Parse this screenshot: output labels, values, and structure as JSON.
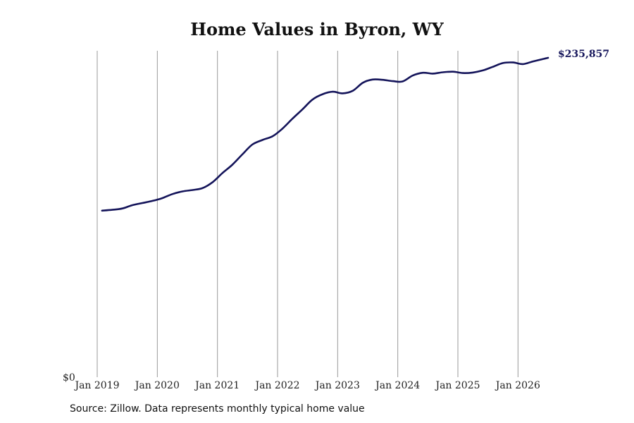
{
  "chart_data": {
    "type": "line",
    "title": "Home Values in Byron, WY",
    "source": "Source: Zillow. Data represents monthly typical home value",
    "y_min_label": "$0",
    "end_label": "$235,857",
    "line_color": "#14145a",
    "grid_color": "#999999",
    "ylim": [
      0,
      235857
    ],
    "xlim": [
      2019.0,
      2026.5
    ],
    "x_ticks": [
      {
        "x": 2019,
        "label": "Jan 2019"
      },
      {
        "x": 2020,
        "label": "Jan 2020"
      },
      {
        "x": 2021,
        "label": "Jan 2021"
      },
      {
        "x": 2022,
        "label": "Jan 2022"
      },
      {
        "x": 2023,
        "label": "Jan 2023"
      },
      {
        "x": 2024,
        "label": "Jan 2024"
      },
      {
        "x": 2025,
        "label": "Jan 2025"
      },
      {
        "x": 2026,
        "label": "Jan 2026"
      }
    ],
    "series": [
      {
        "points": [
          [
            2019.08,
            123000
          ],
          [
            2019.25,
            123600
          ],
          [
            2019.42,
            124600
          ],
          [
            2019.58,
            127000
          ],
          [
            2019.75,
            128600
          ],
          [
            2019.92,
            130200
          ],
          [
            2020.08,
            132200
          ],
          [
            2020.25,
            135200
          ],
          [
            2020.42,
            137200
          ],
          [
            2020.58,
            138200
          ],
          [
            2020.75,
            139600
          ],
          [
            2020.92,
            144000
          ],
          [
            2021.08,
            150600
          ],
          [
            2021.25,
            157000
          ],
          [
            2021.42,
            164800
          ],
          [
            2021.58,
            171800
          ],
          [
            2021.75,
            175200
          ],
          [
            2021.92,
            178000
          ],
          [
            2022.08,
            183500
          ],
          [
            2022.25,
            191000
          ],
          [
            2022.42,
            198000
          ],
          [
            2022.58,
            205000
          ],
          [
            2022.75,
            209000
          ],
          [
            2022.92,
            210800
          ],
          [
            2023.08,
            209600
          ],
          [
            2023.25,
            211500
          ],
          [
            2023.42,
            217500
          ],
          [
            2023.58,
            219800
          ],
          [
            2023.75,
            219600
          ],
          [
            2023.92,
            218600
          ],
          [
            2024.08,
            218400
          ],
          [
            2024.25,
            222800
          ],
          [
            2024.42,
            224800
          ],
          [
            2024.58,
            224200
          ],
          [
            2024.75,
            225200
          ],
          [
            2024.92,
            225600
          ],
          [
            2025.08,
            224600
          ],
          [
            2025.25,
            225000
          ],
          [
            2025.42,
            226600
          ],
          [
            2025.58,
            229200
          ],
          [
            2025.75,
            232000
          ],
          [
            2025.92,
            232400
          ],
          [
            2026.08,
            231200
          ],
          [
            2026.25,
            233200
          ],
          [
            2026.42,
            235000
          ],
          [
            2026.5,
            235857
          ]
        ]
      }
    ]
  }
}
